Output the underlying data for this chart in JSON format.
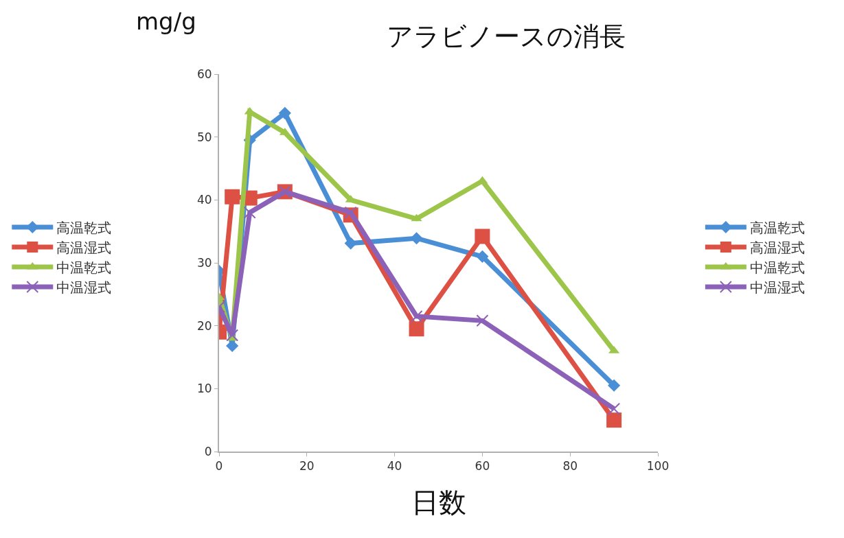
{
  "chart_data": {
    "type": "line",
    "title": "アラビノースの消長",
    "xlabel": "日数",
    "ylabel": "mg/g",
    "x": [
      0,
      3,
      7,
      15,
      30,
      45,
      60,
      90
    ],
    "series": [
      {
        "name": "高温乾式",
        "color": "#4a8fd6",
        "marker": "diamond",
        "values": [
          28.7,
          16.8,
          49.5,
          53.8,
          33.1,
          33.9,
          31,
          10.5
        ]
      },
      {
        "name": "高温湿式",
        "color": "#dd5145",
        "marker": "square",
        "values": [
          19,
          40.5,
          40.3,
          41.3,
          37.6,
          19.5,
          34.2,
          5
        ]
      },
      {
        "name": "中温乾式",
        "color": "#9cc54a",
        "marker": "triangle",
        "values": [
          24.5,
          18,
          54,
          50.7,
          40,
          37,
          43,
          16
        ]
      },
      {
        "name": "中温湿式",
        "color": "#8c61b8",
        "marker": "cross",
        "values": [
          23,
          18.5,
          38,
          41.3,
          38,
          21.5,
          20.8,
          6.8
        ]
      }
    ],
    "xlim": [
      0,
      100
    ],
    "xticks": [
      0,
      20,
      40,
      60,
      80,
      100
    ],
    "ylim": [
      0,
      60
    ],
    "yticks": [
      0,
      10,
      20,
      30,
      40,
      50,
      60
    ],
    "grid": false,
    "legend": [
      "left",
      "right"
    ],
    "line_style": "solid"
  }
}
